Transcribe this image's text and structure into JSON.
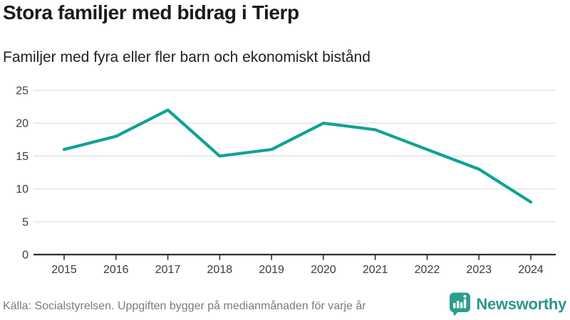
{
  "header": {
    "title": "Stora familjer med bidrag i Tierp",
    "subtitle": "Familjer med fyra eller fler barn och ekonomiskt bistånd"
  },
  "chart_data": {
    "type": "line",
    "title": "Stora familjer med bidrag i Tierp",
    "subtitle": "Familjer med fyra eller fler barn och ekonomiskt bistånd",
    "categories": [
      "2015",
      "2016",
      "2017",
      "2018",
      "2019",
      "2020",
      "2021",
      "2022",
      "2023",
      "2024"
    ],
    "series": [
      {
        "name": "Familjer med fyra eller fler barn och ekonomiskt bistånd",
        "values": [
          16,
          18,
          22,
          15,
          16,
          20,
          19,
          16,
          13,
          8
        ]
      }
    ],
    "xlabel": "",
    "ylabel": "",
    "ylim": [
      0,
      25
    ],
    "yticks": [
      0,
      5,
      10,
      15,
      20,
      25
    ],
    "grid": "horizontal",
    "legend": "none",
    "line_color": "#10A294"
  },
  "footer": {
    "source": "Källa: Socialstyrelsen. Uppgiften bygger på medianmånaden för varje år",
    "logo": {
      "text": "Newsworthy",
      "icon": "bar-chart-speech-bubble",
      "icon_color": "#2A9D8F",
      "text_color": "#2D968C"
    }
  },
  "colors": {
    "accent": "#10A294",
    "grid": "#e3e3e3",
    "axis": "#2e2e2e",
    "tick_label": "#3c3c3c",
    "title": "#1b1b1b",
    "source": "#7b7b7b",
    "background": "#ffffff"
  }
}
